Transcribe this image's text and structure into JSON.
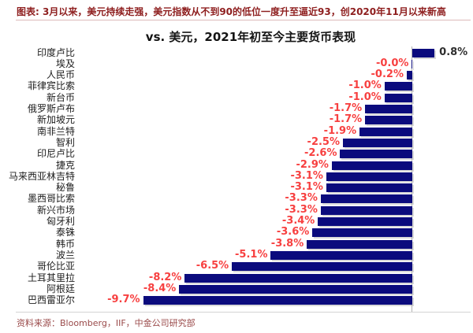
{
  "header": {
    "title": "图表: 3月以来，美元持续走强，美元指数从不到90的低位一度升至逼近93，创2020年11月以来新高"
  },
  "chart_data": {
    "type": "bar",
    "orientation": "horizontal",
    "title": "vs. 美元，2021年初至今主要货币表现",
    "value_unit": "%",
    "xlim": [
      -10.5,
      1.5
    ],
    "grid": false,
    "legend": false,
    "categories": [
      "印度卢比",
      "埃及",
      "人民币",
      "菲律宾比索",
      "新台币",
      "俄罗斯卢布",
      "新加坡元",
      "南非兰特",
      "智利",
      "印尼卢比",
      "捷克",
      "马来西亚林吉特",
      "秘鲁",
      "墨西哥比索",
      "新兴市场",
      "匈牙利",
      "泰铢",
      "韩币",
      "波兰",
      "哥伦比亚",
      "土耳其里拉",
      "阿根廷",
      "巴西雷亚尔"
    ],
    "values": [
      0.8,
      -0.0,
      -0.2,
      -1.0,
      -1.0,
      -1.7,
      -1.7,
      -1.9,
      -2.5,
      -2.6,
      -2.9,
      -3.1,
      -3.1,
      -3.3,
      -3.3,
      -3.4,
      -3.6,
      -3.8,
      -5.1,
      -6.5,
      -8.2,
      -8.4,
      -9.7
    ],
    "labels": [
      "0.8%",
      "-0.0%",
      "-0.2%",
      "-1.0%",
      "-1.0%",
      "-1.7%",
      "-1.7%",
      "-1.9%",
      "-2.5%",
      "-2.6%",
      "-2.9%",
      "-3.1%",
      "-3.1%",
      "-3.3%",
      "-3.3%",
      "-3.4%",
      "-3.6%",
      "-3.8%",
      "-5.1%",
      "-6.5%",
      "-8.2%",
      "-8.4%",
      "-9.7%"
    ]
  },
  "colors": {
    "bar": "#0b0b7d",
    "negative_value_label": "#f74040",
    "positive_value_label": "#2e2e2e",
    "header_text": "#8e1e1e",
    "header_rule": "#ddb9b9",
    "baseline": "#d4d4d4",
    "source_text": "#9a4a4a"
  },
  "footer": {
    "source": "资料来源：Bloomberg，IIF，中金公司研究部"
  }
}
